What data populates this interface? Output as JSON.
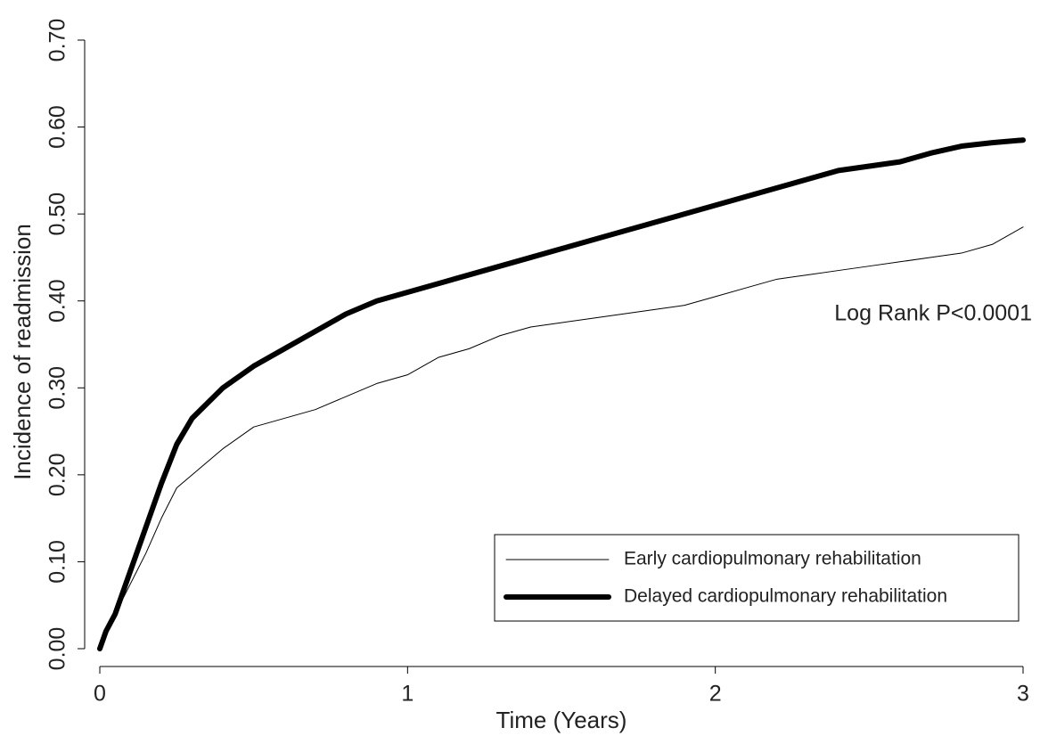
{
  "chart_data": {
    "type": "line",
    "x_label": "Time (Years)",
    "y_label": "Incidence of readmission",
    "annotation": "Log Rank P<0.0001",
    "x": [
      0,
      0.02,
      0.05,
      0.1,
      0.15,
      0.2,
      0.25,
      0.3,
      0.4,
      0.5,
      0.6,
      0.7,
      0.8,
      0.9,
      1.0,
      1.1,
      1.2,
      1.3,
      1.4,
      1.5,
      1.6,
      1.7,
      1.8,
      1.9,
      2.0,
      2.1,
      2.2,
      2.3,
      2.4,
      2.5,
      2.6,
      2.7,
      2.8,
      2.9,
      3.0
    ],
    "series": [
      {
        "name": "Early cardiopulmonary rehabilitation",
        "color": "#000000",
        "width": 1,
        "values": [
          0,
          0.02,
          0.04,
          0.075,
          0.11,
          0.15,
          0.185,
          0.2,
          0.23,
          0.255,
          0.265,
          0.275,
          0.29,
          0.305,
          0.315,
          0.335,
          0.345,
          0.36,
          0.37,
          0.375,
          0.38,
          0.385,
          0.39,
          0.395,
          0.405,
          0.415,
          0.425,
          0.43,
          0.435,
          0.44,
          0.445,
          0.45,
          0.455,
          0.465,
          0.485
        ]
      },
      {
        "name": "Delayed cardiopulmonary rehabilitation",
        "color": "#000000",
        "width": 6,
        "values": [
          0,
          0.02,
          0.04,
          0.09,
          0.14,
          0.19,
          0.235,
          0.265,
          0.3,
          0.325,
          0.345,
          0.365,
          0.385,
          0.4,
          0.41,
          0.42,
          0.43,
          0.44,
          0.45,
          0.46,
          0.47,
          0.48,
          0.49,
          0.5,
          0.51,
          0.52,
          0.53,
          0.54,
          0.55,
          0.555,
          0.56,
          0.57,
          0.578,
          0.582,
          0.585
        ]
      }
    ],
    "xlim": [
      0,
      3
    ],
    "xticks": [
      0,
      1,
      2,
      3
    ],
    "ylim": [
      0,
      0.7
    ],
    "yticks": [
      {
        "value": 0,
        "label": "0.00"
      },
      {
        "value": 0.1,
        "label": "0.10"
      },
      {
        "value": 0.2,
        "label": "0.20"
      },
      {
        "value": 0.3,
        "label": "0.30"
      },
      {
        "value": 0.4,
        "label": "0.40"
      },
      {
        "value": 0.5,
        "label": "0.50"
      },
      {
        "value": 0.6,
        "label": "0.60"
      },
      {
        "value": 0.7,
        "label": "0.70"
      }
    ],
    "legend": "bottom right"
  }
}
